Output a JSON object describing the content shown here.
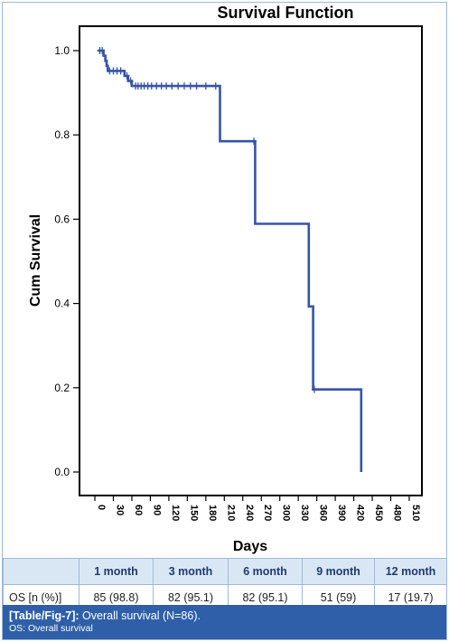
{
  "chart_data": {
    "type": "line",
    "title": "Survival Function",
    "xlabel": "Days",
    "ylabel": "Cum Survival",
    "xlim": [
      -5,
      525
    ],
    "ylim": [
      0,
      1.0
    ],
    "x_ticks": [
      0,
      30,
      60,
      90,
      120,
      150,
      180,
      210,
      240,
      270,
      300,
      330,
      360,
      390,
      420,
      450,
      480,
      510
    ],
    "y_ticks": [
      0.0,
      0.2,
      0.4,
      0.6,
      0.8,
      1.0
    ],
    "y_tick_labels": [
      "0.0",
      "0.2",
      "0.4",
      "0.6",
      "0.8",
      "1.0"
    ],
    "grid": false,
    "step_curve": [
      [
        5,
        1.0
      ],
      [
        14,
        1.0
      ],
      [
        14,
        0.988
      ],
      [
        17,
        0.988
      ],
      [
        17,
        0.976
      ],
      [
        19,
        0.976
      ],
      [
        19,
        0.964
      ],
      [
        21,
        0.964
      ],
      [
        21,
        0.952
      ],
      [
        48,
        0.952
      ],
      [
        48,
        0.94
      ],
      [
        54,
        0.94
      ],
      [
        54,
        0.928
      ],
      [
        60,
        0.928
      ],
      [
        60,
        0.916
      ],
      [
        203,
        0.916
      ],
      [
        203,
        0.785
      ],
      [
        260,
        0.785
      ],
      [
        260,
        0.589
      ],
      [
        347,
        0.589
      ],
      [
        347,
        0.393
      ],
      [
        354,
        0.393
      ],
      [
        354,
        0.196
      ],
      [
        432,
        0.196
      ],
      [
        432,
        0.0
      ]
    ],
    "censored_x": [
      8,
      12,
      24,
      30,
      36,
      42,
      52,
      58,
      66,
      70,
      75,
      80,
      86,
      92,
      100,
      108,
      116,
      125,
      135,
      145,
      155,
      165,
      180,
      196,
      258,
      356
    ]
  },
  "table": {
    "headers": [
      "",
      "1 month",
      "3 month",
      "6 month",
      "9 month",
      "12 month"
    ],
    "row_label": "OS [n (%)]",
    "values": [
      "85 (98.8)",
      "82 (95.1)",
      "82 (95.1)",
      "51 (59)",
      "17 (19.7)"
    ]
  },
  "caption": {
    "label": "[Table/Fig-7]:",
    "text": "Overall survival (N=86).",
    "note": "OS: Overall survival"
  },
  "colors": {
    "line": "#3653a6",
    "header_bg": "#d9e7f5",
    "caption_bg": "#2e5fa8",
    "border": "#9db9d9"
  }
}
